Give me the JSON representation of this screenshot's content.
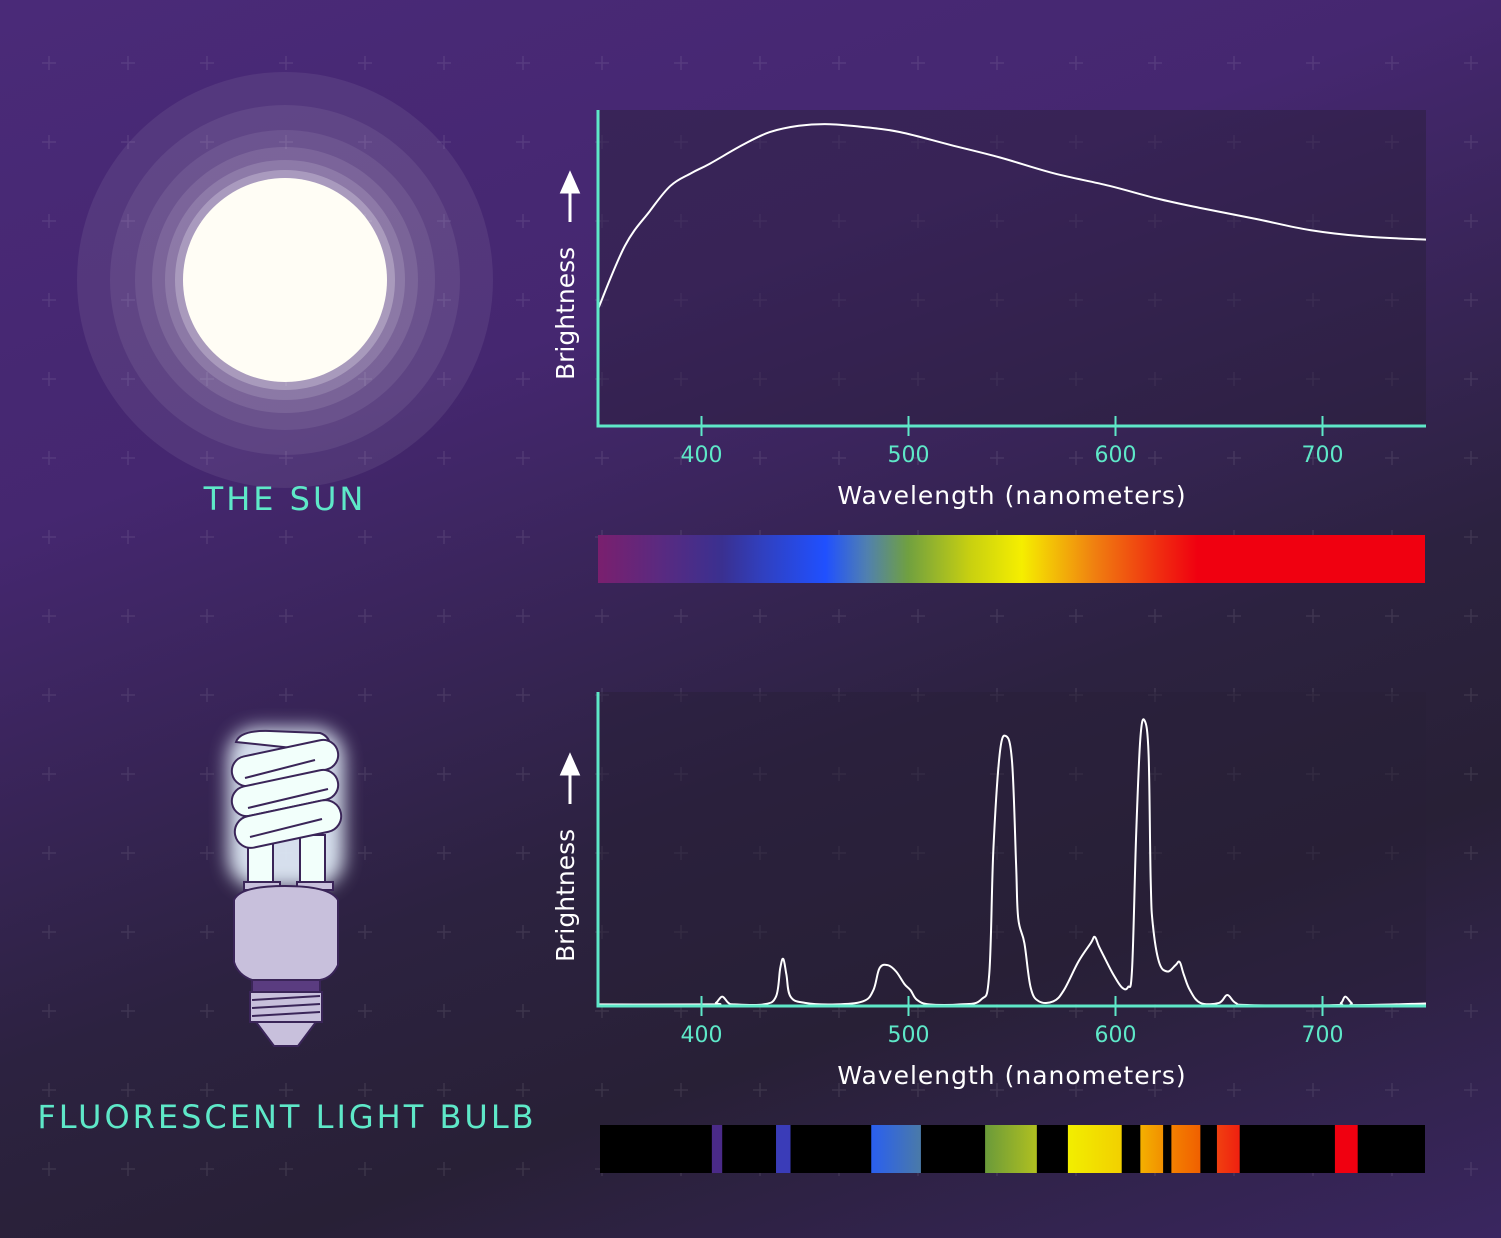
{
  "colors": {
    "accent": "#5ee8c8",
    "curve": "#ffffff",
    "sun": "#fffdf5"
  },
  "sun_panel": {
    "title": "THE SUN"
  },
  "bulb_panel": {
    "title": "FLUORESCENT LIGHT BULB"
  },
  "chart_data": [
    {
      "type": "line",
      "xlabel": "Wavelength (nanometers)",
      "ylabel": "Brightness",
      "x_ticks": [
        "400",
        "500",
        "600",
        "700"
      ],
      "xlim": [
        350,
        750
      ],
      "ylim": [
        0,
        1
      ],
      "grid": false,
      "points": [
        [
          350,
          0.37
        ],
        [
          363,
          0.57
        ],
        [
          375,
          0.68
        ],
        [
          385,
          0.76
        ],
        [
          395,
          0.8
        ],
        [
          404,
          0.83
        ],
        [
          420,
          0.89
        ],
        [
          433,
          0.93
        ],
        [
          447,
          0.95
        ],
        [
          462,
          0.955
        ],
        [
          480,
          0.945
        ],
        [
          496,
          0.93
        ],
        [
          520,
          0.89
        ],
        [
          544,
          0.85
        ],
        [
          570,
          0.8
        ],
        [
          597,
          0.76
        ],
        [
          620,
          0.72
        ],
        [
          641,
          0.69
        ],
        [
          668,
          0.655
        ],
        [
          694,
          0.62
        ],
        [
          720,
          0.6
        ],
        [
          750,
          0.59
        ]
      ],
      "spectrum": "continuous"
    },
    {
      "type": "line",
      "xlabel": "Wavelength (nanometers)",
      "ylabel": "Brightness",
      "x_ticks": [
        "400",
        "500",
        "600",
        "700"
      ],
      "xlim": [
        350,
        750
      ],
      "ylim": [
        0,
        1
      ],
      "grid": false,
      "points": [
        [
          350,
          0.005
        ],
        [
          404,
          0.005
        ],
        [
          407,
          0.01
        ],
        [
          410,
          0.03
        ],
        [
          413,
          0.01
        ],
        [
          416,
          0.005
        ],
        [
          430,
          0.005
        ],
        [
          436,
          0.03
        ],
        [
          438,
          0.12
        ],
        [
          439.5,
          0.15
        ],
        [
          441,
          0.1
        ],
        [
          443,
          0.03
        ],
        [
          450,
          0.01
        ],
        [
          465,
          0.005
        ],
        [
          478,
          0.015
        ],
        [
          483,
          0.05
        ],
        [
          486,
          0.12
        ],
        [
          490,
          0.13
        ],
        [
          494,
          0.11
        ],
        [
          498,
          0.07
        ],
        [
          501,
          0.05
        ],
        [
          504,
          0.02
        ],
        [
          510,
          0.005
        ],
        [
          525,
          0.005
        ],
        [
          535,
          0.02
        ],
        [
          539,
          0.1
        ],
        [
          541,
          0.5
        ],
        [
          544,
          0.8
        ],
        [
          547,
          0.86
        ],
        [
          550,
          0.78
        ],
        [
          552,
          0.45
        ],
        [
          553,
          0.28
        ],
        [
          556,
          0.2
        ],
        [
          559,
          0.06
        ],
        [
          563,
          0.015
        ],
        [
          570,
          0.015
        ],
        [
          575,
          0.05
        ],
        [
          582,
          0.14
        ],
        [
          588,
          0.2
        ],
        [
          590,
          0.22
        ],
        [
          592,
          0.19
        ],
        [
          595,
          0.15
        ],
        [
          599,
          0.1
        ],
        [
          603,
          0.06
        ],
        [
          606,
          0.06
        ],
        [
          608,
          0.12
        ],
        [
          610,
          0.55
        ],
        [
          612,
          0.85
        ],
        [
          614,
          0.91
        ],
        [
          616,
          0.8
        ],
        [
          617,
          0.4
        ],
        [
          618,
          0.26
        ],
        [
          621,
          0.14
        ],
        [
          625,
          0.11
        ],
        [
          629,
          0.13
        ],
        [
          631,
          0.14
        ],
        [
          633,
          0.1
        ],
        [
          636,
          0.05
        ],
        [
          641,
          0.01
        ],
        [
          650,
          0.01
        ],
        [
          654,
          0.035
        ],
        [
          658,
          0.01
        ],
        [
          665,
          0.003
        ],
        [
          705,
          0.003
        ],
        [
          709,
          0.01
        ],
        [
          711,
          0.03
        ],
        [
          714,
          0.01
        ],
        [
          717,
          0.003
        ],
        [
          750,
          0.008
        ]
      ],
      "spectrum_bands": [
        {
          "from": 405,
          "to": 410,
          "colors": [
            "#4a2a88",
            "#4a2a88"
          ]
        },
        {
          "from": 436,
          "to": 443,
          "colors": [
            "#3a3cb8",
            "#3a3cb8"
          ]
        },
        {
          "from": 482,
          "to": 506,
          "colors": [
            "#2a5ff0",
            "#4a7aa8"
          ]
        },
        {
          "from": 537,
          "to": 562,
          "colors": [
            "#6a9a3a",
            "#b0c020"
          ]
        },
        {
          "from": 577,
          "to": 603,
          "colors": [
            "#f2ee00",
            "#f2d000"
          ]
        },
        {
          "from": 612,
          "to": 623,
          "colors": [
            "#f4b000",
            "#f29000"
          ]
        },
        {
          "from": 627,
          "to": 641,
          "colors": [
            "#f48000",
            "#f06000"
          ]
        },
        {
          "from": 649,
          "to": 660,
          "colors": [
            "#f04010",
            "#f02010"
          ]
        },
        {
          "from": 706,
          "to": 717,
          "colors": [
            "#f00010",
            "#f00010"
          ]
        }
      ]
    }
  ]
}
